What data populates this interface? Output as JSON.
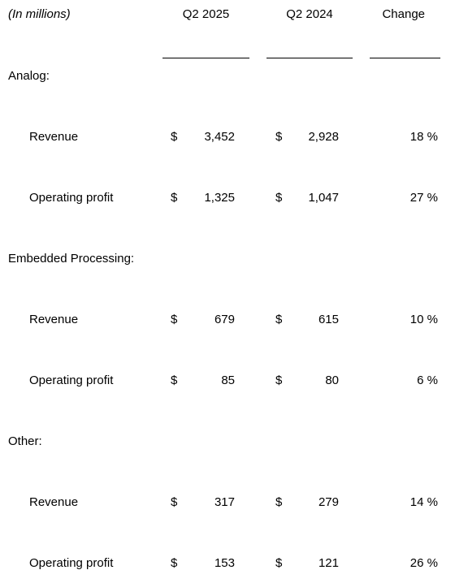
{
  "header": {
    "caption": "(In millions)",
    "columns": [
      "Q2 2025",
      "Q2 2024",
      "Change"
    ]
  },
  "currency_symbol": "$",
  "segments": [
    {
      "name": "Analog:",
      "rows": [
        {
          "label": "Revenue",
          "q2_2025": "3,452",
          "q2_2024": "2,928",
          "change": "18 %"
        },
        {
          "label": "Operating profit",
          "q2_2025": "1,325",
          "q2_2024": "1,047",
          "change": "27 %"
        }
      ]
    },
    {
      "name": "Embedded Processing:",
      "rows": [
        {
          "label": "Revenue",
          "q2_2025": "679",
          "q2_2024": "615",
          "change": "10 %"
        },
        {
          "label": "Operating profit",
          "q2_2025": "85",
          "q2_2024": "80",
          "change": "6 %"
        }
      ]
    },
    {
      "name": "Other:",
      "rows": [
        {
          "label": "Revenue",
          "q2_2025": "317",
          "q2_2024": "279",
          "change": "14 %"
        },
        {
          "label": "Operating profit",
          "q2_2025": "153",
          "q2_2024": "121",
          "change": "26 %"
        }
      ]
    }
  ]
}
